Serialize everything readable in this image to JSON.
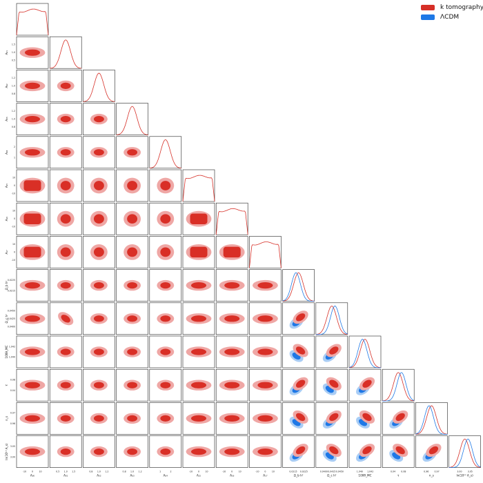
{
  "chart_data": {
    "type": "corner",
    "parameters": [
      "A₀₀",
      "A₀₁",
      "A₀₂",
      "A₀₃",
      "A₀₄",
      "A₁₅",
      "A₁₆",
      "A₁₇",
      "Ω_b h²",
      "Ω_c h²",
      "100θ_MC",
      "τ",
      "n_s",
      "ln(10¹⁰ A_s)"
    ],
    "diagonal_ticks": {
      "A00": [
        "-10",
        "0",
        "10"
      ],
      "A01": [
        "0.5",
        "1.0",
        "1.5"
      ],
      "A02": [
        "0.8",
        "1.0",
        "1.2"
      ],
      "A03": [
        "0.8",
        "1.0",
        "1.2"
      ],
      "A04": [
        "1",
        "2"
      ],
      "A15": [
        "-10",
        "0",
        "10"
      ],
      "A16": [
        "-10",
        "0",
        "10"
      ],
      "A17": [
        "-10",
        "0",
        "10"
      ],
      "Obh2": [
        "0.0215",
        "0.0225"
      ],
      "Och2": [
        "0.0400",
        "0.0425",
        "0.0450"
      ],
      "theta": [
        "1.040",
        "1.042"
      ],
      "tau": [
        "0.04",
        "0.08"
      ],
      "ns": [
        "0.96",
        "0.97"
      ],
      "lnAs": [
        "3.00",
        "3.05"
      ]
    },
    "series": [
      {
        "name": "k tomography",
        "color": "#d62f27",
        "fill_light": "#efa7a5",
        "fill_dark": "#d92f26"
      },
      {
        "name": "ΛCDM",
        "color": "#1e78e6",
        "fill_light": "#a9cdf5",
        "fill_dark": "#1e78e6"
      }
    ],
    "legend_position": "top-right",
    "lcdm_parameters_from_index": 8
  }
}
